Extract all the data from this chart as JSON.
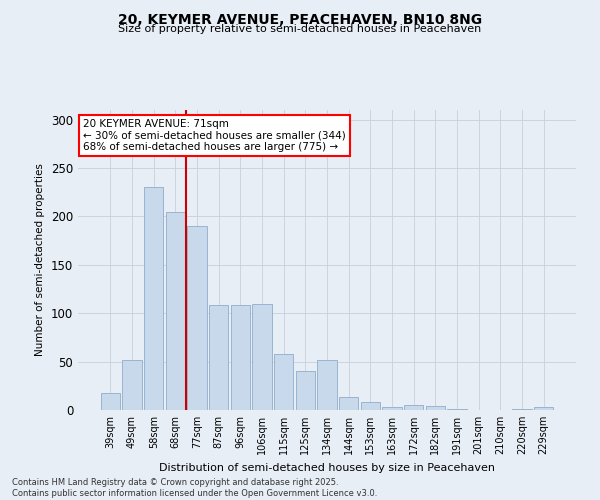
{
  "title_line1": "20, KEYMER AVENUE, PEACEHAVEN, BN10 8NG",
  "title_line2": "Size of property relative to semi-detached houses in Peacehaven",
  "xlabel": "Distribution of semi-detached houses by size in Peacehaven",
  "ylabel": "Number of semi-detached properties",
  "categories": [
    "39sqm",
    "49sqm",
    "58sqm",
    "68sqm",
    "77sqm",
    "87sqm",
    "96sqm",
    "106sqm",
    "115sqm",
    "125sqm",
    "134sqm",
    "144sqm",
    "153sqm",
    "163sqm",
    "172sqm",
    "182sqm",
    "191sqm",
    "201sqm",
    "210sqm",
    "220sqm",
    "229sqm"
  ],
  "values": [
    18,
    52,
    230,
    205,
    190,
    108,
    108,
    110,
    58,
    40,
    52,
    13,
    8,
    3,
    5,
    4,
    1,
    0,
    0,
    1,
    3
  ],
  "bar_color": "#c9d9ec",
  "bar_edge_color": "#9ab4d0",
  "grid_color": "#c8d0dc",
  "vline_color": "#cc0000",
  "vline_x_idx": 3,
  "annotation_text": "20 KEYMER AVENUE: 71sqm\n← 30% of semi-detached houses are smaller (344)\n68% of semi-detached houses are larger (775) →",
  "annotation_box_color": "white",
  "annotation_box_edge": "red",
  "ylim": [
    0,
    310
  ],
  "yticks": [
    0,
    50,
    100,
    150,
    200,
    250,
    300
  ],
  "footnote": "Contains HM Land Registry data © Crown copyright and database right 2025.\nContains public sector information licensed under the Open Government Licence v3.0.",
  "bg_color": "#e8eef6",
  "plot_bg_color": "#e8eef6"
}
